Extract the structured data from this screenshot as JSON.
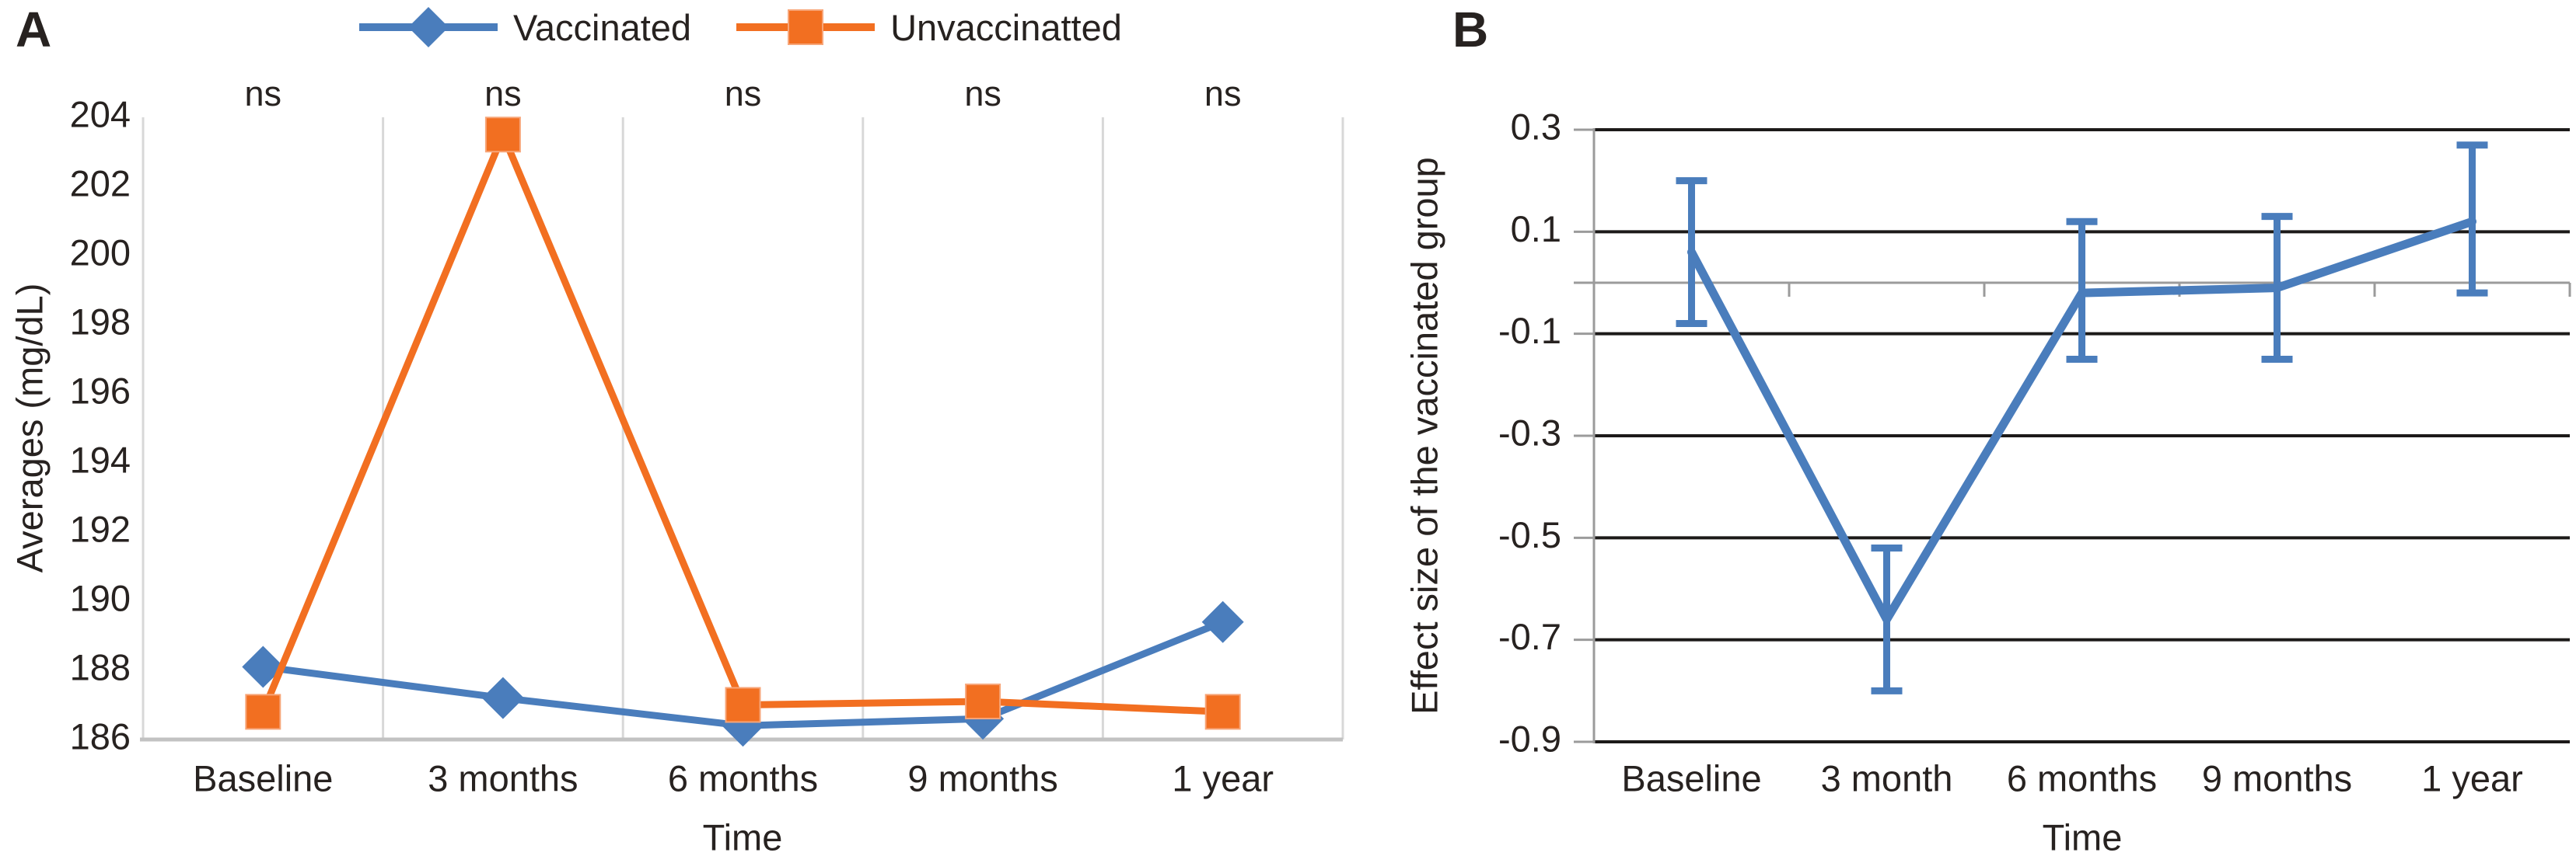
{
  "figure": {
    "background": "#FFFFFF",
    "text_color": "#272220"
  },
  "panels": [
    {
      "label": "A"
    },
    {
      "label": "B"
    }
  ],
  "colors": {
    "vaccinated_blue": "#4A7DBC",
    "unvaccinated_orange": "#F26F21",
    "panel_a_gridline": "#D8D8D8",
    "panel_a_axis": "#C2C2C2",
    "panel_b_gridline": "#1C1A19",
    "panel_b_axis_gray": "#9B9B9B"
  },
  "chart_data": [
    {
      "type": "line",
      "panel": "A",
      "categories": [
        "Baseline",
        "3 months",
        "6 months",
        "9 months",
        "1 year"
      ],
      "significance_labels": [
        "ns",
        "ns",
        "ns",
        "ns",
        "ns"
      ],
      "series": [
        {
          "name": "Vaccinated",
          "marker": "diamond",
          "color": "#4A7DBC",
          "values": [
            188.1,
            187.2,
            186.4,
            186.6,
            189.4
          ]
        },
        {
          "name": "Unvaccinatted",
          "marker": "square",
          "color": "#F26F21",
          "values": [
            186.8,
            203.5,
            187.0,
            187.1,
            186.8
          ]
        }
      ],
      "xlabel": "Time",
      "ylabel": "Averages (mg/dL)",
      "ylim": [
        186,
        204
      ],
      "yticks": [
        {
          "v": 186,
          "label": "186"
        },
        {
          "v": 188,
          "label": "188"
        },
        {
          "v": 190,
          "label": "190"
        },
        {
          "v": 192,
          "label": "192"
        },
        {
          "v": 194,
          "label": "194"
        },
        {
          "v": 196,
          "label": "196"
        },
        {
          "v": 198,
          "label": "198"
        },
        {
          "v": 200,
          "label": "200"
        },
        {
          "v": 202,
          "label": "202"
        },
        {
          "v": 204,
          "label": "204"
        }
      ],
      "grid": "vertical-category-boundaries",
      "legend_position": "top"
    },
    {
      "type": "line",
      "panel": "B",
      "categories": [
        "Baseline",
        "3 month",
        "6 months",
        "9 months",
        "1 year"
      ],
      "series": [
        {
          "name": "Effect size of the vaccinated group",
          "marker": "none",
          "color": "#4A7DBC",
          "values": [
            0.06,
            -0.66,
            -0.02,
            -0.01,
            0.12
          ],
          "error_low": [
            -0.08,
            -0.8,
            -0.15,
            -0.15,
            -0.02
          ],
          "error_high": [
            0.2,
            -0.52,
            0.12,
            0.13,
            0.27
          ]
        }
      ],
      "xlabel": "Time",
      "ylabel": "Effect size of the vaccinated group",
      "ylim": [
        -0.9,
        0.3
      ],
      "yticks": [
        {
          "v": 0.3,
          "label": "0.3"
        },
        {
          "v": 0.1,
          "label": "0.1"
        },
        {
          "v": -0.1,
          "label": "-0.1"
        },
        {
          "v": -0.3,
          "label": "-0.3"
        },
        {
          "v": -0.5,
          "label": "-0.5"
        },
        {
          "v": -0.7,
          "label": "-0.7"
        },
        {
          "v": -0.9,
          "label": "-0.9"
        }
      ],
      "zero_line": true,
      "grid": "horizontal",
      "legend_position": "none"
    }
  ]
}
